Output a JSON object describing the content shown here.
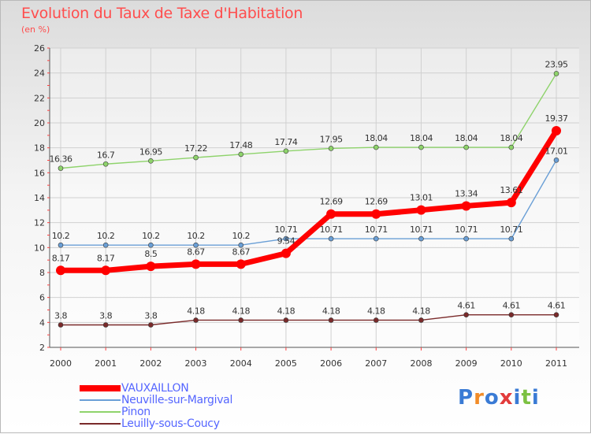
{
  "header": {
    "title": "Evolution du Taux de Taxe d'Habitation",
    "subtitle": "(en %)"
  },
  "logo": {
    "text": "Proxiti",
    "colors": [
      "#3a7bd5",
      "#f28c28",
      "#3a7bd5",
      "#e23b3b",
      "#3a7bd5",
      "#7cc142",
      "#3a7bd5"
    ]
  },
  "chart_data": {
    "type": "line",
    "title": "Evolution du Taux de Taxe d'Habitation",
    "ylabel": "(en %)",
    "xlabel": "",
    "x": [
      "2000",
      "2001",
      "2002",
      "2003",
      "2004",
      "2005",
      "2006",
      "2007",
      "2008",
      "2009",
      "2010",
      "2011"
    ],
    "ylim": [
      2,
      26
    ],
    "yticks": [
      2,
      4,
      6,
      8,
      10,
      12,
      14,
      16,
      18,
      20,
      22,
      24,
      26
    ],
    "grid": true,
    "legend_position": "bottom-left",
    "series": [
      {
        "name": "VAUXAILLON",
        "color": "#ff0000",
        "values": [
          8.17,
          8.17,
          8.5,
          8.67,
          8.67,
          9.54,
          12.69,
          12.69,
          13.01,
          13.34,
          13.61,
          19.37
        ],
        "labels": [
          "8.17",
          "8.17",
          "8.5",
          "8.67",
          "8.67",
          "9.54",
          "12.69",
          "12.69",
          "13.01",
          "13.34",
          "13.61",
          "19.37"
        ]
      },
      {
        "name": "Neuville-sur-Margival",
        "color": "#6a9fd6",
        "values": [
          10.2,
          10.2,
          10.2,
          10.2,
          10.2,
          10.71,
          10.71,
          10.71,
          10.71,
          10.71,
          10.71,
          17.01
        ],
        "labels": [
          "10.2",
          "10.2",
          "10.2",
          "10.2",
          "10.2",
          "10.71",
          "10.71",
          "10.71",
          "10.71",
          "10.71",
          "10.71",
          "17.01"
        ]
      },
      {
        "name": "Pinon",
        "color": "#8ed36b",
        "values": [
          16.36,
          16.7,
          16.95,
          17.22,
          17.48,
          17.74,
          17.95,
          18.04,
          18.04,
          18.04,
          18.04,
          23.95
        ],
        "labels": [
          "16.36",
          "16.7",
          "16.95",
          "17.22",
          "17.48",
          "17.74",
          "17.95",
          "18.04",
          "18.04",
          "18.04",
          "18.04",
          "23.95"
        ]
      },
      {
        "name": "Leuilly-sous-Coucy",
        "color": "#7a2a2a",
        "values": [
          3.8,
          3.8,
          3.8,
          4.18,
          4.18,
          4.18,
          4.18,
          4.18,
          4.18,
          4.61,
          4.61,
          4.61
        ],
        "labels": [
          "3.8",
          "3.8",
          "3.8",
          "4.18",
          "4.18",
          "4.18",
          "4.18",
          "4.18",
          "4.18",
          "4.61",
          "4.61",
          "4.61"
        ]
      }
    ]
  }
}
